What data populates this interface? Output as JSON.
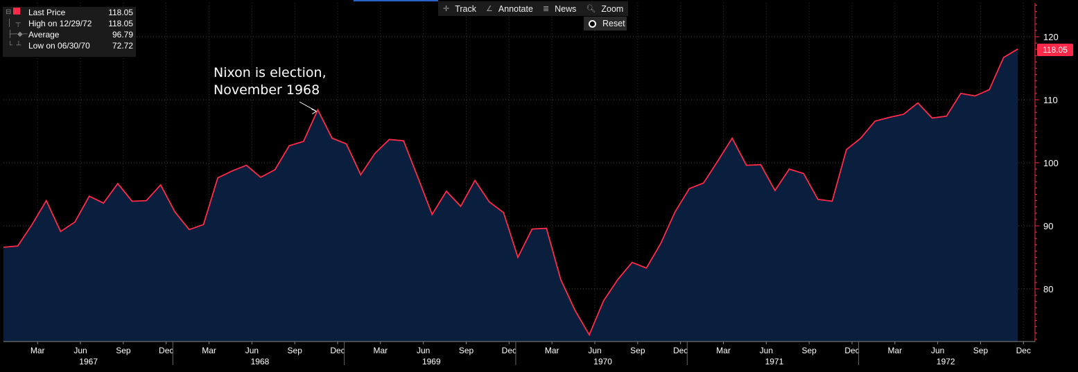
{
  "toolbar": {
    "track": "Track",
    "annotate": "Annotate",
    "news": "News",
    "zoom": "Zoom",
    "reset": "Reset"
  },
  "legend": {
    "last_label": "Last Price",
    "last_value": "118.05",
    "high_label": "High on 12/29/72",
    "high_value": "118.05",
    "avg_label": "Average",
    "avg_value": "96.79",
    "low_label": "Low on 06/30/70",
    "low_value": "72.72"
  },
  "annotation": {
    "line1": "Nixon is election,",
    "line2": "November 1968"
  },
  "last_badge": "118.05",
  "chart_data": {
    "type": "area",
    "color": "#ff2a4a",
    "fill": "#0a1f3d",
    "ylim": [
      71,
      125
    ],
    "yticks": [
      80,
      90,
      100,
      110,
      120
    ],
    "grid": true,
    "x_months": [
      "Jan 1967",
      "Feb 1967",
      "Mar 1967",
      "Apr 1967",
      "May 1967",
      "Jun 1967",
      "Jul 1967",
      "Aug 1967",
      "Sep 1967",
      "Oct 1967",
      "Nov 1967",
      "Dec 1967",
      "Jan 1968",
      "Feb 1968",
      "Mar 1968",
      "Apr 1968",
      "May 1968",
      "Jun 1968",
      "Jul 1968",
      "Aug 1968",
      "Sep 1968",
      "Oct 1968",
      "Nov 1968",
      "Dec 1968",
      "Jan 1969",
      "Feb 1969",
      "Mar 1969",
      "Apr 1969",
      "May 1969",
      "Jun 1969",
      "Jul 1969",
      "Aug 1969",
      "Sep 1969",
      "Oct 1969",
      "Nov 1969",
      "Dec 1969",
      "Jan 1970",
      "Feb 1970",
      "Mar 1970",
      "Apr 1970",
      "May 1970",
      "Jun 1970",
      "Jul 1970",
      "Aug 1970",
      "Sep 1970",
      "Oct 1970",
      "Nov 1970",
      "Dec 1970",
      "Jan 1971",
      "Feb 1971",
      "Mar 1971",
      "Apr 1971",
      "May 1971",
      "Jun 1971",
      "Jul 1971",
      "Aug 1971",
      "Sep 1971",
      "Oct 1971",
      "Nov 1971",
      "Dec 1971",
      "Jan 1972",
      "Feb 1972",
      "Mar 1972",
      "Apr 1972",
      "May 1972",
      "Jun 1972",
      "Jul 1972",
      "Aug 1972",
      "Sep 1972",
      "Oct 1972",
      "Nov 1972",
      "Dec 1972"
    ],
    "values": [
      86.6,
      86.8,
      90.2,
      94.0,
      89.1,
      90.6,
      94.7,
      93.6,
      96.7,
      93.9,
      94.0,
      96.5,
      92.2,
      89.4,
      90.2,
      97.6,
      98.7,
      99.6,
      97.7,
      98.9,
      102.7,
      103.4,
      108.4,
      103.9,
      103.0,
      98.1,
      101.5,
      103.7,
      103.5,
      97.7,
      91.8,
      95.5,
      93.1,
      97.2,
      93.8,
      92.1,
      85.0,
      89.5,
      89.6,
      81.5,
      76.6,
      72.7,
      78.1,
      81.5,
      84.2,
      83.3,
      87.2,
      92.2,
      95.9,
      96.8,
      100.3,
      103.9,
      99.6,
      99.7,
      95.6,
      99.0,
      98.3,
      94.2,
      93.9,
      102.1,
      103.9,
      106.6,
      107.2,
      107.7,
      109.5,
      107.1,
      107.4,
      111.0,
      110.6,
      111.6,
      116.7,
      118.05
    ],
    "x_tick_labels": [
      "Mar",
      "Jun",
      "Sep",
      "Dec",
      "Mar",
      "Jun",
      "Sep",
      "Dec",
      "Mar",
      "Jun",
      "Sep",
      "Dec",
      "Mar",
      "Jun",
      "Sep",
      "Dec",
      "Mar",
      "Jun",
      "Sep",
      "Dec",
      "Mar",
      "Jun",
      "Sep",
      "Dec"
    ],
    "year_labels": [
      "1967",
      "1968",
      "1969",
      "1970",
      "1971",
      "1972"
    ]
  }
}
